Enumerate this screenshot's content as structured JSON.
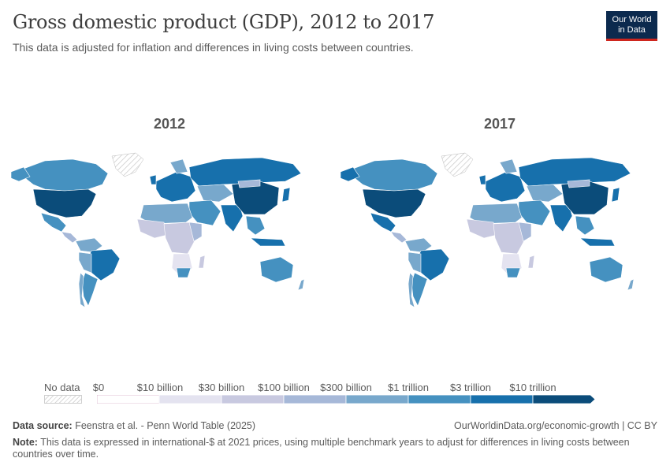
{
  "header": {
    "title": "Gross domestic product (GDP), 2012 to 2017",
    "subtitle": "This data is adjusted for inflation and differences in living costs between countries.",
    "logo_line1": "Our World",
    "logo_line2": "in Data"
  },
  "maps": [
    {
      "year": "2012"
    },
    {
      "year": "2017"
    }
  ],
  "legend": {
    "no_data": "No data",
    "labels": [
      "$0",
      "$10 billion",
      "$30 billion",
      "$100 billion",
      "$300 billion",
      "$1 trillion",
      "$3 trillion",
      "$10 trillion"
    ],
    "colors": [
      "#ffffff",
      "#e4e3f0",
      "#c8c9e0",
      "#a6b8d8",
      "#78a8cc",
      "#4591c0",
      "#1770ac",
      "#0b4c7a"
    ]
  },
  "footer": {
    "source_label": "Data source:",
    "source_text": "Feenstra et al. - Penn World Table (2025)",
    "url": "OurWorldinData.org/economic-growth | CC BY",
    "note_label": "Note:",
    "note_text": "This data is expressed in international-$ at 2021 prices, using multiple benchmark years to adjust for differences in living costs between countries over time."
  },
  "colors": {
    "darkest": "#0b4c7a",
    "dark": "#1770ac",
    "mid": "#4591c0",
    "light": "#78a8cc",
    "lighter": "#a6b8d8",
    "pale": "#c8c9e0",
    "palest": "#e4e3f0"
  }
}
